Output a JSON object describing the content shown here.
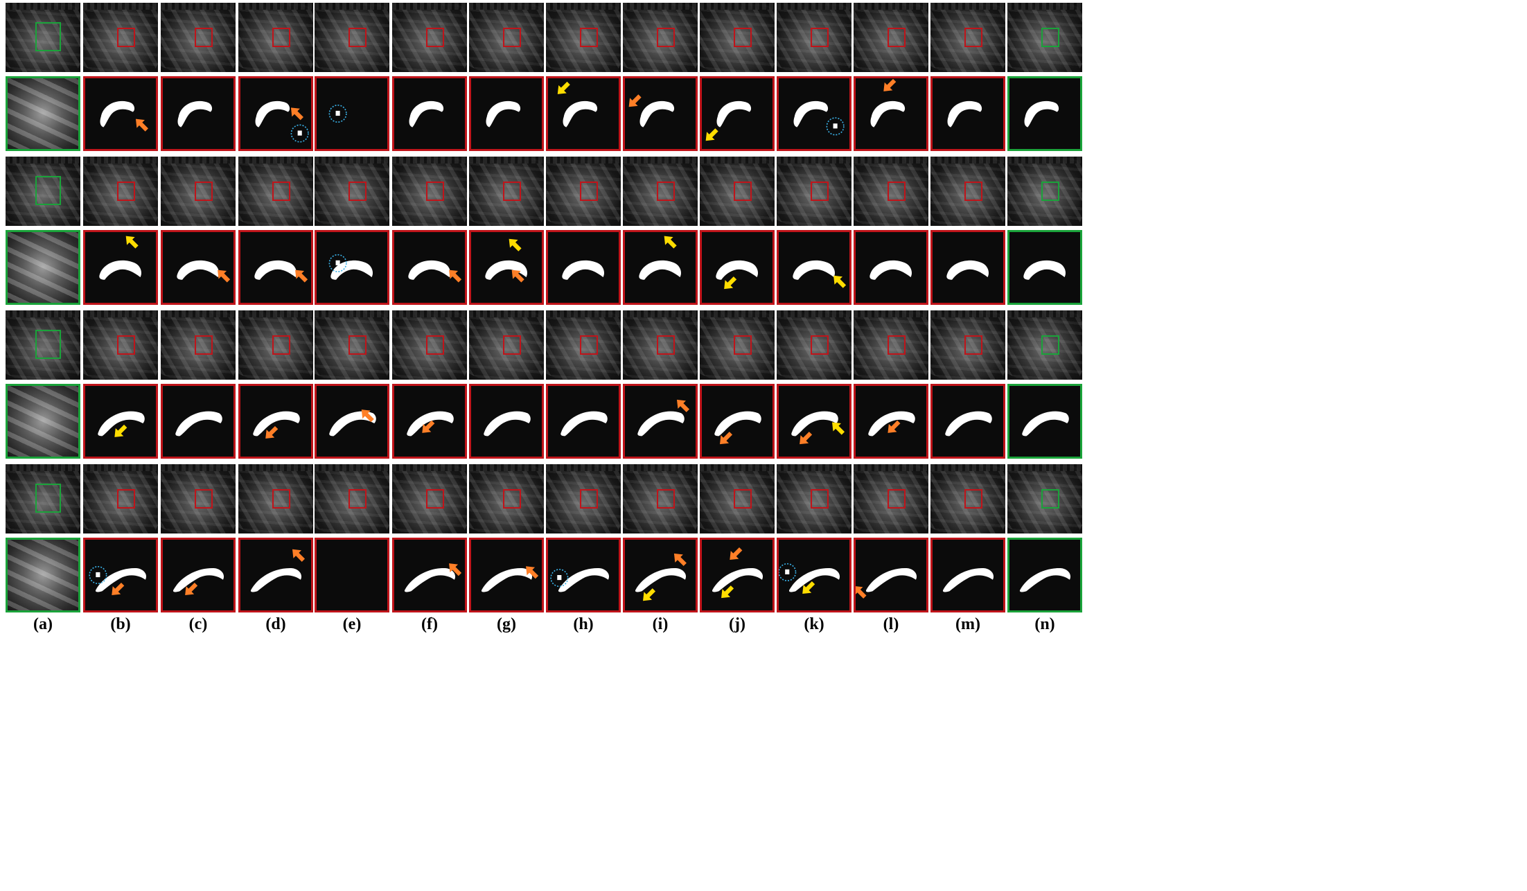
{
  "column_labels": [
    "(a)",
    "(b)",
    "(c)",
    "(d)",
    "(e)",
    "(f)",
    "(g)",
    "(h)",
    "(i)",
    "(j)",
    "(k)",
    "(l)",
    "(m)",
    "(n)"
  ],
  "colors": {
    "red_box": "#c0141a",
    "green_box": "#1aa33a",
    "orange_arrow": "#ff7f27",
    "yellow_arrow": "#ffdd00",
    "cyan_circle": "#3ab0e6"
  }
}
